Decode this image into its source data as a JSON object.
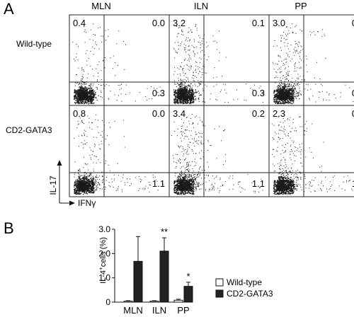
{
  "panel_a": {
    "letter": "A",
    "columns": [
      "MLN",
      "ILN",
      "PP"
    ],
    "rows": [
      "Wild-type",
      "CD2-GATA3"
    ],
    "y_axis_label": "IL-17",
    "x_axis_label": "IFNγ",
    "quadrants": [
      [
        {
          "ul": "0.4",
          "ur": "0.0",
          "lr": "0.3"
        },
        {
          "ul": "3.2",
          "ur": "0.1",
          "lr": "0.3"
        },
        {
          "ul": "3.0",
          "ur": "0.0",
          "lr": "0.4"
        }
      ],
      [
        {
          "ul": "0.8",
          "ur": "0.0",
          "lr": "1.1"
        },
        {
          "ul": "3.4",
          "ur": "0.2",
          "lr": "1.1"
        },
        {
          "ul": "2.3",
          "ur": "0.1",
          "lr": "1.0"
        }
      ]
    ]
  },
  "chart_data": {
    "letter": "B",
    "type": "bar",
    "ylabel": "IL-4+cells (%)",
    "ylabel_main": "IL-4",
    "ylabel_sup": "+",
    "ylabel_rest": "cells (%)",
    "ylim": [
      0,
      3.0
    ],
    "yticks": [
      "0",
      "1.0",
      "2.0",
      "3.0"
    ],
    "categories": [
      "MLN",
      "ILN",
      "PP"
    ],
    "series": [
      {
        "name": "Wild-type",
        "values": [
          0.04,
          0.04,
          0.08
        ],
        "errors": [
          0.02,
          0.02,
          0.04
        ],
        "color": "#ffffff"
      },
      {
        "name": "CD2-GATA3",
        "values": [
          1.68,
          2.1,
          0.65
        ],
        "errors": [
          1.02,
          0.55,
          0.17
        ],
        "color": "#222222"
      }
    ],
    "significance": [
      "",
      "**",
      "*"
    ],
    "legend_position": "right"
  }
}
